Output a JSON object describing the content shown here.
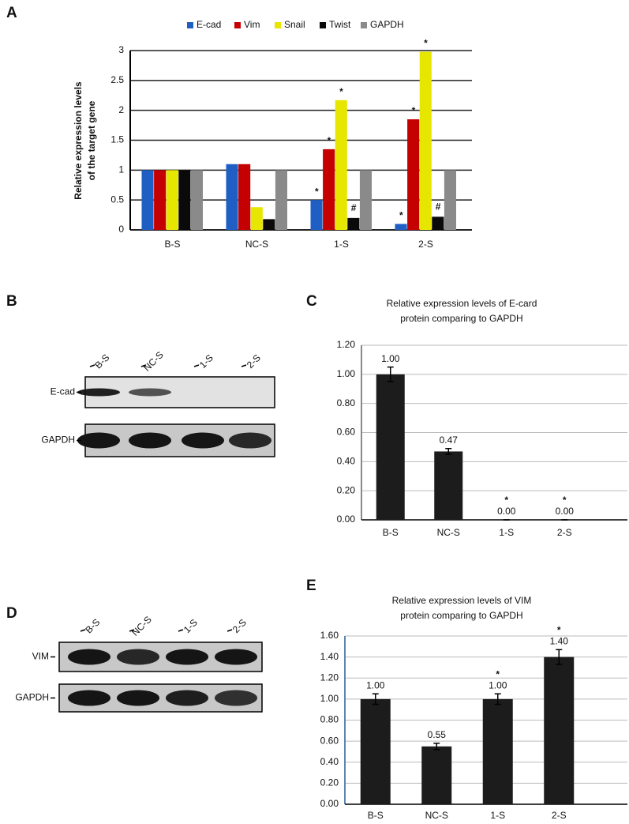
{
  "chart_data": [
    {
      "type": "bar",
      "panel": "A",
      "ylabel": [
        "Relative expression levels",
        "of the target gene"
      ],
      "categories": [
        "B-S",
        "NC-S",
        "1-S",
        "2-S"
      ],
      "series": [
        {
          "name": "E-cad",
          "color": "#1f5fc4",
          "values": [
            1,
            1.1,
            0.5,
            0.1
          ],
          "annotations": [
            null,
            null,
            "*",
            "*"
          ]
        },
        {
          "name": "Vim",
          "color": "#c40000",
          "values": [
            1,
            1.1,
            1.35,
            1.85
          ],
          "annotations": [
            null,
            null,
            "*",
            "*"
          ]
        },
        {
          "name": "Snail",
          "color": "#e6e600",
          "values": [
            1,
            0.38,
            2.17,
            2.98
          ],
          "annotations": [
            null,
            null,
            "*",
            "*"
          ]
        },
        {
          "name": "Twist",
          "color": "#0a0a0a",
          "values": [
            1,
            0.18,
            0.2,
            0.22
          ],
          "annotations": [
            null,
            null,
            "#",
            "#"
          ]
        },
        {
          "name": "GAPDH",
          "color": "#8a8a8a",
          "values": [
            1,
            1,
            1,
            1
          ]
        }
      ],
      "ylim": [
        0,
        3
      ],
      "yticks": [
        0,
        0.5,
        1,
        1.5,
        2,
        2.5,
        3
      ],
      "grid": true,
      "legend": "top"
    },
    {
      "type": "bar",
      "panel": "C",
      "title": [
        "Relative expression levels of E-card",
        "protein comparing to GAPDH"
      ],
      "categories": [
        "B-S",
        "NC-S",
        "1-S",
        "2-S"
      ],
      "values": [
        1.0,
        0.47,
        0.0,
        0.0
      ],
      "value_labels": [
        "1.00",
        "0.47",
        "0.00",
        "0.00"
      ],
      "errors": [
        0.05,
        0.02,
        0,
        0
      ],
      "annotations": [
        null,
        null,
        "*",
        "*"
      ],
      "color": "#1c1c1c",
      "ylim": [
        0,
        1.2
      ],
      "yticks": [
        {
          "value": 0,
          "label": "0.00"
        },
        {
          "value": 0.2,
          "label": "0.20"
        },
        {
          "value": 0.4,
          "label": "0.40"
        },
        {
          "value": 0.6,
          "label": "0.60"
        },
        {
          "value": 0.8,
          "label": "0.80"
        },
        {
          "value": 1,
          "label": "1.00"
        },
        {
          "value": 1.2,
          "label": "1.20"
        }
      ],
      "grid": true
    },
    {
      "type": "bar",
      "panel": "E",
      "title": [
        "Relative expression levels of VIM",
        "protein comparing to GAPDH"
      ],
      "categories": [
        "B-S",
        "NC-S",
        "1-S",
        "2-S"
      ],
      "values": [
        1.0,
        0.55,
        1.0,
        1.4
      ],
      "value_labels": [
        "1.00",
        "0.55",
        "1.00",
        "1.40"
      ],
      "errors": [
        0.05,
        0.03,
        0.05,
        0.07
      ],
      "annotations": [
        null,
        null,
        "*",
        "*"
      ],
      "color": "#1c1c1c",
      "ylim": [
        0,
        1.6
      ],
      "yticks": [
        {
          "value": 0,
          "label": "0.00"
        },
        {
          "value": 0.2,
          "label": "0.20"
        },
        {
          "value": 0.4,
          "label": "0.40"
        },
        {
          "value": 0.6,
          "label": "0.60"
        },
        {
          "value": 0.8,
          "label": "0.80"
        },
        {
          "value": 1,
          "label": "1.00"
        },
        {
          "value": 1.2,
          "label": "1.20"
        },
        {
          "value": 1.4,
          "label": "1.40"
        },
        {
          "value": 1.6,
          "label": "1.60"
        }
      ],
      "grid": true
    }
  ],
  "blots": [
    {
      "panel": "B",
      "lanes": [
        "B-S",
        "NC-S",
        "1-S",
        "2-S"
      ],
      "rows": [
        "E-cad",
        "GAPDH"
      ]
    },
    {
      "panel": "D",
      "lanes": [
        "B-S",
        "NC-S",
        "1-S",
        "2-S"
      ],
      "rows": [
        "VIM",
        "GAPDH"
      ]
    }
  ]
}
